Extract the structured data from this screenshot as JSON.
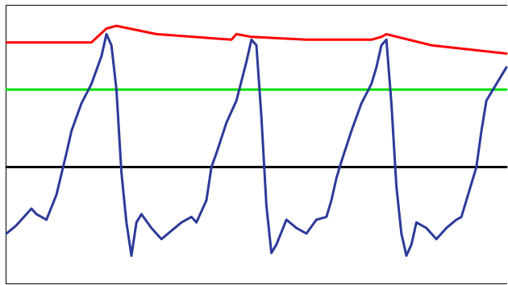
{
  "colors": {
    "background": "#ffffff",
    "frame": "#000000",
    "upper_envelope": "#ff0000",
    "threshold_line": "#00e000",
    "baseline": "#000000",
    "waveform": "#2c3a9a"
  },
  "chart_data": {
    "type": "line",
    "title": "",
    "xlabel": "",
    "ylabel": "",
    "grid": false,
    "legend": "none",
    "xlim": [
      0,
      100
    ],
    "ylim": [
      0,
      100
    ],
    "series": [
      {
        "role": "upper_envelope",
        "color": "#ff0000",
        "x": [
          0,
          17,
          20,
          22,
          30,
          45,
          46,
          49,
          60,
          73,
          75,
          76,
          85,
          100
        ],
        "y": [
          87,
          87,
          92,
          93,
          90,
          88,
          90,
          89,
          88,
          88,
          89,
          90,
          86,
          83
        ]
      },
      {
        "role": "threshold",
        "color": "#00e000",
        "x": [
          0,
          100
        ],
        "y": [
          70,
          70
        ]
      },
      {
        "role": "baseline",
        "color": "#000000",
        "x": [
          0,
          100
        ],
        "y": [
          42,
          42
        ]
      },
      {
        "role": "waveform",
        "color": "#2c3a9a",
        "x": [
          0,
          2,
          4,
          5,
          6,
          7,
          8,
          10,
          12,
          13,
          15,
          17,
          18,
          19,
          20,
          21,
          22,
          23,
          24,
          25,
          26,
          27,
          29,
          31,
          33,
          35,
          37,
          38,
          40,
          41,
          42,
          44,
          46,
          47,
          48,
          49,
          50,
          51,
          52,
          53,
          54,
          56,
          58,
          60,
          62,
          64,
          65,
          66,
          67,
          69,
          71,
          73,
          74,
          75,
          76,
          77,
          78,
          79,
          80,
          81,
          82,
          84,
          86,
          88,
          90,
          91,
          92,
          93,
          94,
          95,
          96,
          98,
          100
        ],
        "y": [
          18,
          21,
          25,
          27,
          25,
          24,
          23,
          32,
          47,
          55,
          65,
          72,
          77,
          82,
          90,
          86,
          70,
          40,
          22,
          10,
          22,
          25,
          20,
          16,
          19,
          22,
          24,
          22,
          30,
          42,
          47,
          58,
          66,
          73,
          80,
          88,
          86,
          60,
          28,
          11,
          14,
          23,
          20,
          18,
          23,
          24,
          30,
          38,
          44,
          55,
          65,
          72,
          78,
          86,
          88,
          65,
          35,
          18,
          10,
          14,
          22,
          20,
          16,
          20,
          23,
          24,
          30,
          36,
          42,
          55,
          66,
          72,
          78
        ]
      }
    ]
  }
}
